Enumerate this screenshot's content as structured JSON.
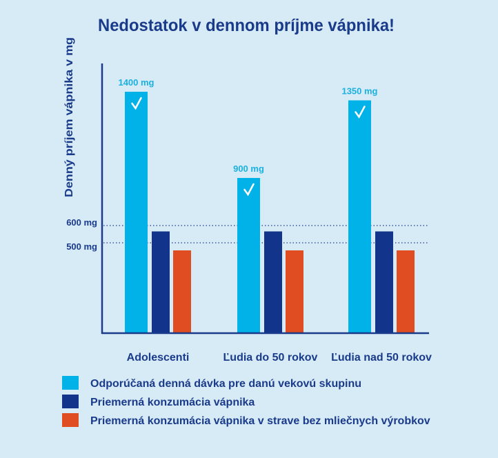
{
  "chart_data": {
    "type": "bar",
    "title": "Nedostatok v dennom príjme vápnika!",
    "ylabel": "Denný príjem vápnika v mg",
    "xlabel": "",
    "categories": [
      "Adolescenti",
      "Ľudia do 50 rokov",
      "Ľudia nad 50 rokov"
    ],
    "series": [
      {
        "name": "Odporúčaná denná dávka pre danú vekovú skupinu",
        "values": [
          1400,
          900,
          1350
        ],
        "labels": [
          "1400 mg",
          "900 mg",
          "1350 mg"
        ],
        "color": "#00b2e8",
        "icon": "check-icon"
      },
      {
        "name": "Priemerná konzumácia vápnika",
        "values": [
          590,
          590,
          590
        ],
        "color": "#12348a"
      },
      {
        "name": "Priemerná konzumácia vápnika v strave bez mliečnych výrobkov",
        "values": [
          480,
          480,
          480
        ],
        "color": "#e04d22"
      }
    ],
    "reference_lines": [
      {
        "value": 600,
        "label": "600 mg"
      },
      {
        "value": 500,
        "label": "500 mg"
      }
    ],
    "ylim": [
      0,
      1500
    ],
    "grid": false,
    "legend_placement": "bottom-left",
    "colors": {
      "background": "#d7ebf7",
      "text": "#1a3a8a",
      "value_label": "#1ab0e0"
    }
  }
}
